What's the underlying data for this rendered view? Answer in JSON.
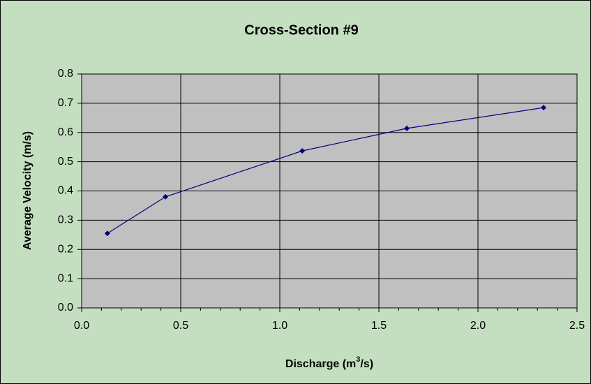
{
  "chart_data": {
    "type": "scatter",
    "title": "Cross-Section #9",
    "x_label": [
      "Discharge (m",
      "3",
      "/s)"
    ],
    "y_label": "Average Velocity (m/s)",
    "series": [
      {
        "color": "#000080",
        "x": [
          0.13,
          0.423,
          1.113,
          1.641,
          2.331
        ],
        "values": [
          0.255,
          0.38,
          0.537,
          0.614,
          0.685
        ]
      }
    ],
    "xlim": [
      0,
      2.5
    ],
    "xticks": [
      {
        "value": 0,
        "label": "0.0"
      },
      {
        "value": 0.5,
        "label": "0.5"
      },
      {
        "value": 1,
        "label": "1.0"
      },
      {
        "value": 1.5,
        "label": "1.5"
      },
      {
        "value": 2,
        "label": "2.0"
      },
      {
        "value": 2.5,
        "label": "2.5"
      }
    ],
    "xminorticks": [
      0.1,
      0.2,
      0.3,
      0.4,
      0.6,
      0.7,
      0.8,
      0.9,
      1.1,
      1.2,
      1.3,
      1.4,
      1.6,
      1.7,
      1.8,
      1.9,
      2.1,
      2.2,
      2.3,
      2.4
    ],
    "ylim": [
      0,
      0.8
    ],
    "yticks": [
      {
        "value": 0,
        "label": "0.0"
      },
      {
        "value": 0.1,
        "label": "0.1"
      },
      {
        "value": 0.2,
        "label": "0.2"
      },
      {
        "value": 0.3,
        "label": "0.3"
      },
      {
        "value": 0.4,
        "label": "0.4"
      },
      {
        "value": 0.5,
        "label": "0.5"
      },
      {
        "value": 0.6,
        "label": "0.6"
      },
      {
        "value": 0.7,
        "label": "0.7"
      },
      {
        "value": 0.8,
        "label": "0.8"
      }
    ],
    "grid": true,
    "background": "#c4dfc0",
    "plot_background": "#c0c0c0"
  }
}
